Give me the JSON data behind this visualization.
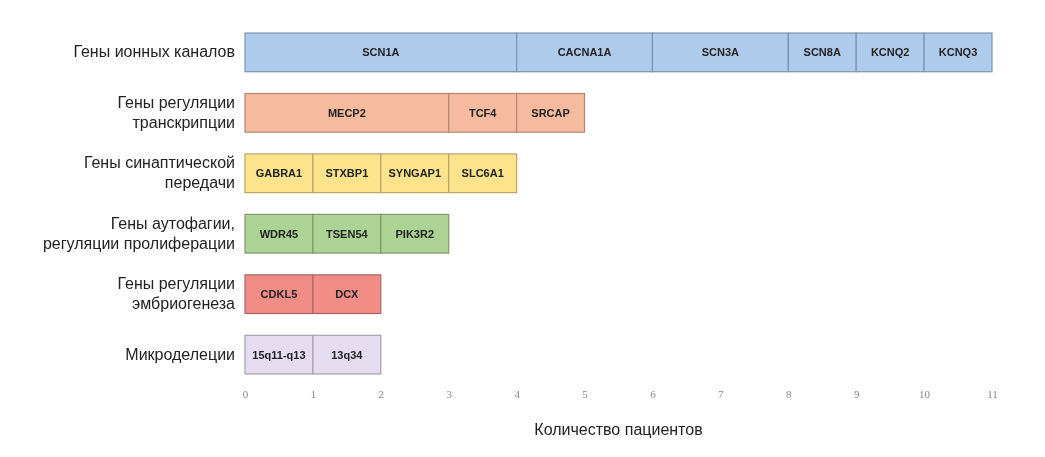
{
  "chart_data": {
    "type": "bar",
    "orientation": "horizontal",
    "stacked": true,
    "xlabel": "Количество пациентов",
    "xlim": [
      0,
      11
    ],
    "xticks": [
      0,
      1,
      2,
      3,
      4,
      5,
      6,
      7,
      8,
      9,
      10,
      11
    ],
    "grid": false,
    "categories": [
      "Гены ионных каналов",
      "Гены регуляции транскрипции",
      "Гены синаптической передачи",
      "Гены аутофагии, регуляции пролиферации",
      "Гены регуляции эмбриогенеза",
      "Микроделеции"
    ],
    "series": [
      {
        "name": "SCN1A",
        "color": "#aecbec",
        "values": [
          4,
          null,
          null,
          null,
          null,
          null
        ]
      },
      {
        "name": "CACNA1A",
        "color": "#aecbec",
        "values": [
          2,
          null,
          null,
          null,
          null,
          null
        ]
      },
      {
        "name": "SCN3A",
        "color": "#aecbec",
        "values": [
          2,
          null,
          null,
          null,
          null,
          null
        ]
      },
      {
        "name": "SCN8A",
        "color": "#aecbec",
        "values": [
          1,
          null,
          null,
          null,
          null,
          null
        ]
      },
      {
        "name": "KCNQ2",
        "color": "#aecbec",
        "values": [
          1,
          null,
          null,
          null,
          null,
          null
        ]
      },
      {
        "name": "KCNQ3",
        "color": "#aecbec",
        "values": [
          1,
          null,
          null,
          null,
          null,
          null
        ]
      },
      {
        "name": "MECP2",
        "color": "#f6bb9e",
        "values": [
          null,
          3,
          null,
          null,
          null,
          null
        ]
      },
      {
        "name": "TCF4",
        "color": "#f6bb9e",
        "values": [
          null,
          1,
          null,
          null,
          null,
          null
        ]
      },
      {
        "name": "SRCAP",
        "color": "#f6bb9e",
        "values": [
          null,
          1,
          null,
          null,
          null,
          null
        ]
      },
      {
        "name": "GABRA1",
        "color": "#fde38c",
        "values": [
          null,
          null,
          1,
          null,
          null,
          null
        ]
      },
      {
        "name": "STXBP1",
        "color": "#fde38c",
        "values": [
          null,
          null,
          1,
          null,
          null,
          null
        ]
      },
      {
        "name": "SYNGAP1",
        "color": "#fde38c",
        "values": [
          null,
          null,
          1,
          null,
          null,
          null
        ]
      },
      {
        "name": "SLC6A1",
        "color": "#fde38c",
        "values": [
          null,
          null,
          1,
          null,
          null,
          null
        ]
      },
      {
        "name": "WDR45",
        "color": "#acd394",
        "values": [
          null,
          null,
          null,
          1,
          null,
          null
        ]
      },
      {
        "name": "TSEN54",
        "color": "#acd394",
        "values": [
          null,
          null,
          null,
          1,
          null,
          null
        ]
      },
      {
        "name": "PIK3R2",
        "color": "#acd394",
        "values": [
          null,
          null,
          null,
          1,
          null,
          null
        ]
      },
      {
        "name": "CDKL5",
        "color": "#ef8d86",
        "values": [
          null,
          null,
          null,
          null,
          1,
          null
        ]
      },
      {
        "name": "DCX",
        "color": "#ef8d86",
        "values": [
          null,
          null,
          null,
          null,
          1,
          null
        ]
      },
      {
        "name": "15q11-q13",
        "color": "#e5dcf0",
        "values": [
          null,
          null,
          null,
          null,
          null,
          1
        ]
      },
      {
        "name": "13q34",
        "color": "#e5dcf0",
        "values": [
          null,
          null,
          null,
          null,
          null,
          1
        ]
      }
    ]
  }
}
